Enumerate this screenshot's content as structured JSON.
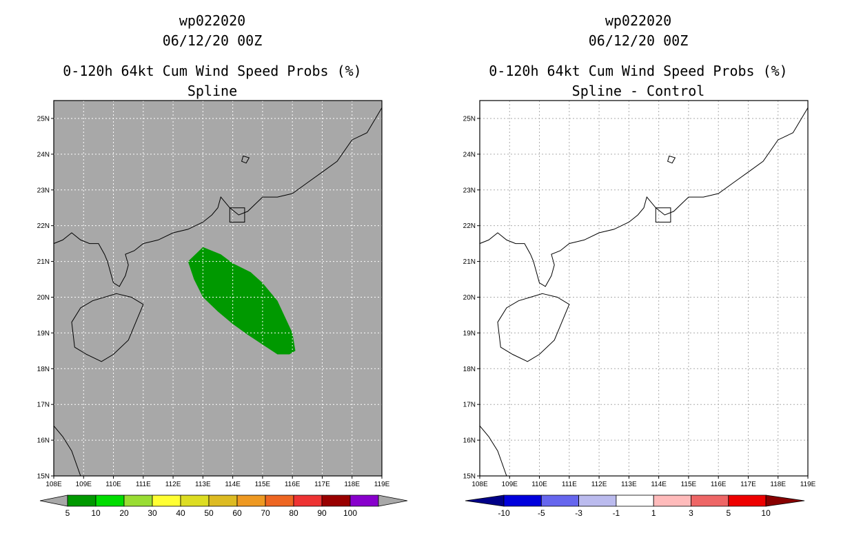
{
  "panels": [
    {
      "id": "spline",
      "title_line1": "wp022020",
      "title_line2": "06/12/20 00Z",
      "title_line3": "0-120h 64kt Cum Wind Speed Probs (%)",
      "title_line4": "Spline",
      "background": "#a8a8a8",
      "grid_color": "#ffffff",
      "fill_color": "#009900",
      "prob_region": [
        [
          112.5,
          21.0
        ],
        [
          113.0,
          21.4
        ],
        [
          113.6,
          21.2
        ],
        [
          114.0,
          20.95
        ],
        [
          114.6,
          20.7
        ],
        [
          115.0,
          20.4
        ],
        [
          115.5,
          19.9
        ],
        [
          116.0,
          19.0
        ],
        [
          116.1,
          18.5
        ],
        [
          115.9,
          18.4
        ],
        [
          115.5,
          18.4
        ],
        [
          114.5,
          18.95
        ],
        [
          114.0,
          19.25
        ],
        [
          113.5,
          19.6
        ],
        [
          113.0,
          20.0
        ],
        [
          112.7,
          20.5
        ]
      ],
      "colorbar": {
        "labels": [
          "5",
          "10",
          "20",
          "30",
          "40",
          "50",
          "60",
          "70",
          "80",
          "90",
          "100"
        ],
        "colors": [
          "#009900",
          "#00dd00",
          "#99dd33",
          "#ffff33",
          "#dddd22",
          "#ddbb22",
          "#ee9922",
          "#ee6622",
          "#ee3333",
          "#990000",
          "#8800cc"
        ],
        "end_color": "#a8a8a8"
      }
    },
    {
      "id": "diff",
      "title_line1": "wp022020",
      "title_line2": "06/12/20 00Z",
      "title_line3": "0-120h 64kt Cum Wind Speed Probs (%)",
      "title_line4": "Spline - Control",
      "background": "#ffffff",
      "grid_color": "#aaaaaa",
      "colorbar": {
        "labels": [
          "-10",
          "-5",
          "-3",
          "-1",
          "1",
          "3",
          "5",
          "10"
        ],
        "colors": [
          "#0000dd",
          "#6666ee",
          "#bbbbee",
          "#ffffff",
          "#ffbbbb",
          "#ee6666",
          "#ee0000"
        ],
        "low_end_color": "#000088",
        "high_end_color": "#880000"
      }
    }
  ],
  "map": {
    "lon_range": [
      108,
      119
    ],
    "lat_range": [
      15,
      25.5
    ],
    "x_ticks": [
      "108E",
      "109E",
      "110E",
      "111E",
      "112E",
      "113E",
      "114E",
      "115E",
      "116E",
      "117E",
      "118E",
      "119E"
    ],
    "y_ticks": [
      "15N",
      "16N",
      "17N",
      "18N",
      "19N",
      "20N",
      "21N",
      "22N",
      "23N",
      "24N",
      "25N"
    ],
    "coastline": [
      [
        108.0,
        21.5
      ],
      [
        108.3,
        21.6
      ],
      [
        108.6,
        21.8
      ],
      [
        108.9,
        21.6
      ],
      [
        109.2,
        21.5
      ],
      [
        109.5,
        21.5
      ],
      [
        109.7,
        21.2
      ],
      [
        109.8,
        21.0
      ],
      [
        109.9,
        20.7
      ],
      [
        110.0,
        20.4
      ],
      [
        110.2,
        20.3
      ],
      [
        110.4,
        20.6
      ],
      [
        110.5,
        20.9
      ],
      [
        110.4,
        21.2
      ],
      [
        110.7,
        21.3
      ],
      [
        111.0,
        21.5
      ],
      [
        111.5,
        21.6
      ],
      [
        112.0,
        21.8
      ],
      [
        112.5,
        21.9
      ],
      [
        113.0,
        22.1
      ],
      [
        113.3,
        22.3
      ],
      [
        113.5,
        22.5
      ],
      [
        113.6,
        22.8
      ],
      [
        113.9,
        22.5
      ],
      [
        114.2,
        22.3
      ],
      [
        114.5,
        22.4
      ],
      [
        115.0,
        22.8
      ],
      [
        115.5,
        22.8
      ],
      [
        116.0,
        22.9
      ],
      [
        116.5,
        23.2
      ],
      [
        117.0,
        23.5
      ],
      [
        117.5,
        23.8
      ],
      [
        118.0,
        24.4
      ],
      [
        118.5,
        24.6
      ],
      [
        119.0,
        25.3
      ]
    ],
    "hainan": [
      [
        110.1,
        20.1
      ],
      [
        110.6,
        20.0
      ],
      [
        111.0,
        19.8
      ],
      [
        110.8,
        19.4
      ],
      [
        110.5,
        18.8
      ],
      [
        110.0,
        18.4
      ],
      [
        109.6,
        18.2
      ],
      [
        109.1,
        18.4
      ],
      [
        108.7,
        18.6
      ],
      [
        108.6,
        19.3
      ],
      [
        108.9,
        19.7
      ],
      [
        109.3,
        19.9
      ],
      [
        109.7,
        20.0
      ]
    ],
    "taiwan_strait_island": [
      [
        114.35,
        23.95
      ],
      [
        114.55,
        23.9
      ],
      [
        114.45,
        23.75
      ],
      [
        114.3,
        23.8
      ]
    ],
    "hongkong_box": [
      [
        113.9,
        22.1
      ],
      [
        114.4,
        22.1
      ],
      [
        114.4,
        22.5
      ],
      [
        113.9,
        22.5
      ]
    ],
    "vietnam_coast": [
      [
        108.0,
        16.4
      ],
      [
        108.3,
        16.1
      ],
      [
        108.6,
        15.7
      ],
      [
        108.9,
        15.0
      ]
    ]
  }
}
